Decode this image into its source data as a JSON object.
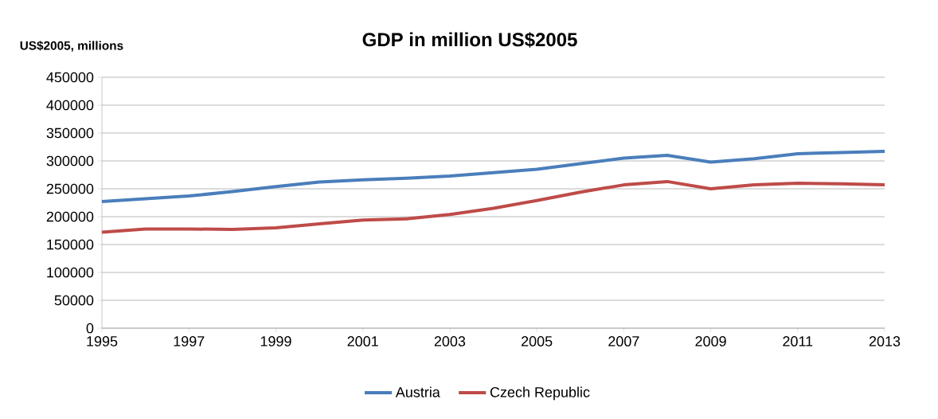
{
  "chart_data": {
    "type": "line",
    "title": "GDP in million US$2005",
    "ylabel": "US$2005, millions",
    "x": [
      1995,
      1996,
      1997,
      1998,
      1999,
      2000,
      2001,
      2002,
      2003,
      2004,
      2005,
      2006,
      2007,
      2008,
      2009,
      2010,
      2011,
      2012,
      2013
    ],
    "series": [
      {
        "name": "Austria",
        "color": "#4a7ebb",
        "values": [
          227000,
          232000,
          237000,
          245000,
          254000,
          262000,
          266000,
          269000,
          273000,
          279000,
          285000,
          295000,
          305000,
          310000,
          298000,
          304000,
          313000,
          315000,
          317000
        ]
      },
      {
        "name": "Czech Republic",
        "color": "#be4b48",
        "values": [
          172000,
          178000,
          178000,
          177000,
          180000,
          187000,
          194000,
          196000,
          204000,
          215000,
          229000,
          244000,
          257000,
          263000,
          250000,
          257000,
          260000,
          259000,
          257000
        ]
      }
    ],
    "xlim": [
      1995,
      2013
    ],
    "xticks": [
      1995,
      1997,
      1999,
      2001,
      2003,
      2005,
      2007,
      2009,
      2011,
      2013
    ],
    "ylim": [
      0,
      450000
    ],
    "yticks": [
      0,
      50000,
      100000,
      150000,
      200000,
      250000,
      300000,
      350000,
      400000,
      450000
    ],
    "grid": "y",
    "legend": "bottom",
    "marker": "none",
    "line_style": "solid"
  }
}
